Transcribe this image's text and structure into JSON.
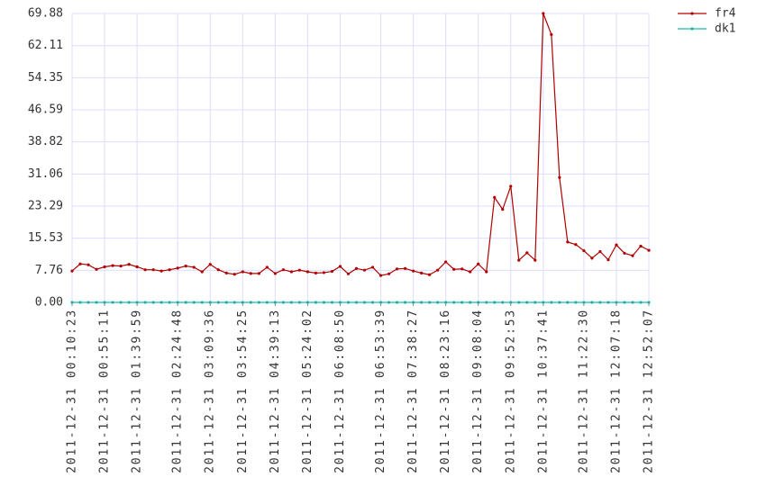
{
  "chart_data": {
    "type": "line",
    "categories": [
      "2011-12-31 00:10:23",
      null,
      null,
      null,
      "2011-12-31 00:55:11",
      null,
      null,
      null,
      "2011-12-31 01:39:59",
      null,
      null,
      null,
      null,
      "2011-12-31 02:24:48",
      null,
      null,
      null,
      "2011-12-31 03:09:36",
      null,
      null,
      null,
      "2011-12-31 03:54:25",
      null,
      null,
      null,
      "2011-12-31 04:39:13",
      null,
      null,
      null,
      "2011-12-31 05:24:02",
      null,
      null,
      null,
      "2011-12-31 06:08:50",
      null,
      null,
      null,
      null,
      "2011-12-31 06:53:39",
      null,
      null,
      null,
      "2011-12-31 07:38:27",
      null,
      null,
      null,
      "2011-12-31 08:23:16",
      null,
      null,
      null,
      "2011-12-31 09:08:04",
      null,
      null,
      null,
      "2011-12-31 09:52:53",
      null,
      null,
      null,
      "2011-12-31 10:37:41",
      null,
      null,
      null,
      null,
      "2011-12-31 11:22:30",
      null,
      null,
      null,
      "2011-12-31 12:07:18",
      null,
      null,
      null,
      "2011-12-31 12:52:07"
    ],
    "series": [
      {
        "name": "fr4",
        "color": "#b00000",
        "values": [
          7.6,
          9.3,
          9.1,
          8.0,
          8.6,
          8.9,
          8.8,
          9.2,
          8.6,
          7.9,
          7.9,
          7.6,
          7.9,
          8.3,
          8.8,
          8.5,
          7.4,
          9.2,
          7.9,
          7.1,
          6.8,
          7.4,
          7.0,
          7.0,
          8.5,
          7.0,
          7.9,
          7.4,
          7.8,
          7.4,
          7.1,
          7.2,
          7.5,
          8.7,
          6.9,
          8.2,
          7.8,
          8.5,
          6.5,
          6.9,
          8.1,
          8.2,
          7.6,
          7.1,
          6.7,
          7.8,
          9.8,
          8.0,
          8.1,
          7.4,
          9.3,
          7.4,
          25.4,
          22.5,
          28.1,
          10.2,
          12.0,
          10.2,
          69.88,
          64.8,
          30.2,
          14.6,
          14.0,
          12.5,
          10.7,
          12.3,
          10.3,
          13.9,
          11.9,
          11.3,
          13.6,
          12.6
        ]
      },
      {
        "name": "dk1",
        "color": "#20b2aa",
        "values": [
          0,
          0,
          0,
          0,
          0,
          0,
          0,
          0,
          0,
          0,
          0,
          0,
          0,
          0,
          0,
          0,
          0,
          0,
          0,
          0,
          0,
          0,
          0,
          0,
          0,
          0,
          0,
          0,
          0,
          0,
          0,
          0,
          0,
          0,
          0,
          0,
          0,
          0,
          0,
          0,
          0,
          0,
          0,
          0,
          0,
          0,
          0,
          0,
          0,
          0,
          0,
          0,
          0,
          0,
          0,
          0,
          0,
          0,
          0,
          0,
          0,
          0,
          0,
          0,
          0,
          0,
          0,
          0,
          0,
          0,
          0,
          0
        ]
      }
    ],
    "ylim": [
      0,
      69.88
    ],
    "yticks": [
      {
        "value": 0,
        "label": "0.00"
      },
      7.76,
      15.53,
      23.29,
      31.06,
      38.82,
      46.59,
      54.35,
      62.11,
      69.88
    ],
    "grid": true
  }
}
